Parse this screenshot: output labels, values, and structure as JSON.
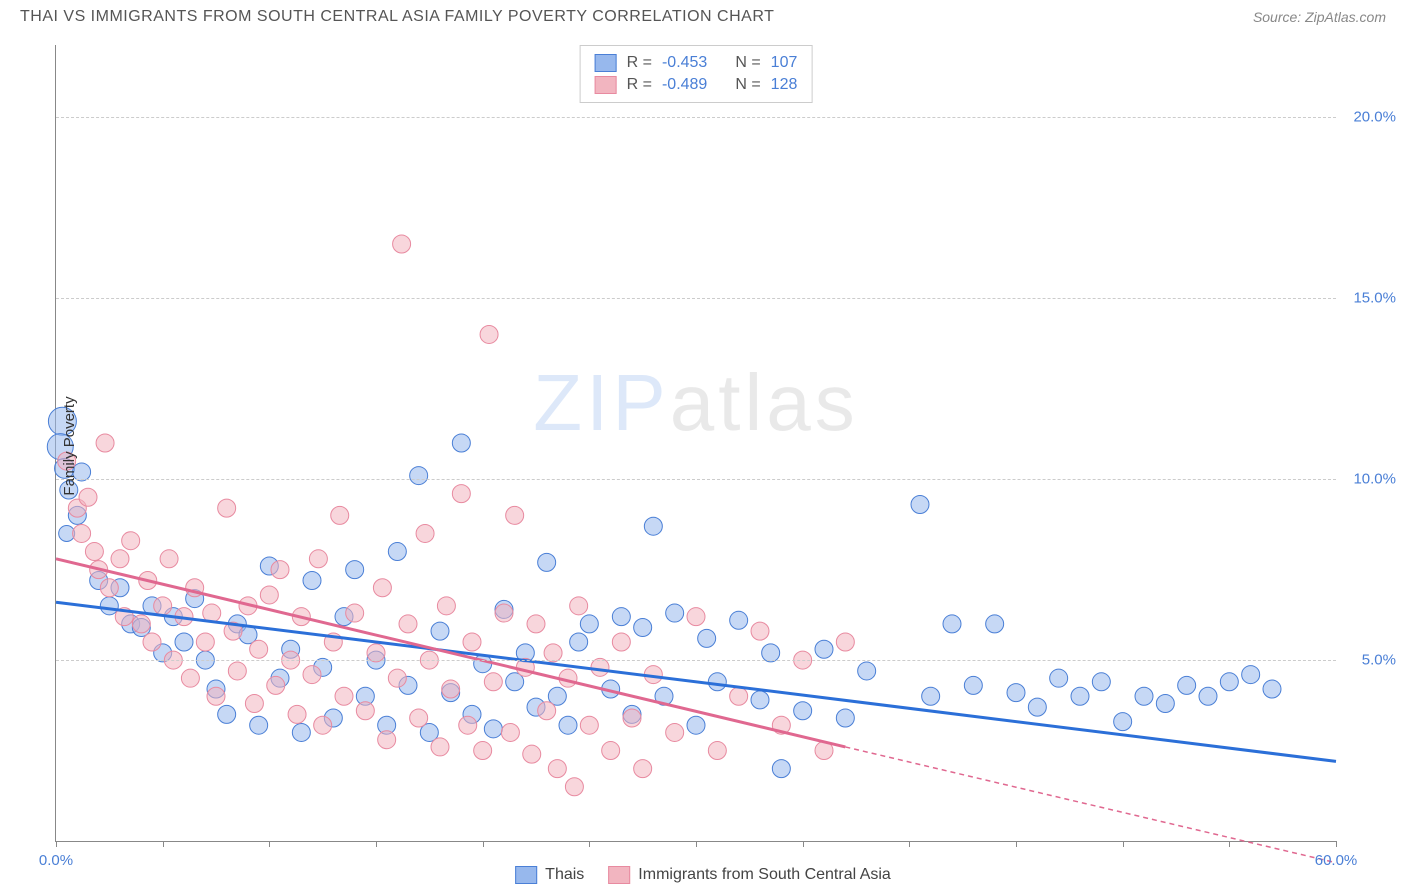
{
  "header": {
    "title": "THAI VS IMMIGRANTS FROM SOUTH CENTRAL ASIA FAMILY POVERTY CORRELATION CHART",
    "source": "Source: ZipAtlas.com"
  },
  "chart": {
    "type": "scatter",
    "ylabel": "Family Poverty",
    "background_color": "#ffffff",
    "grid_color": "#cccccc",
    "axis_color": "#888888",
    "tick_label_color": "#4a7fd6",
    "label_fontsize": 15,
    "xlim": [
      0,
      60
    ],
    "ylim": [
      0,
      22
    ],
    "xticks": [
      0,
      5,
      10,
      15,
      20,
      25,
      30,
      35,
      40,
      45,
      50,
      55,
      60
    ],
    "xtick_labels": {
      "0": "0.0%",
      "60": "60.0%"
    },
    "yticks": [
      5,
      10,
      15,
      20
    ],
    "ytick_labels": {
      "5": "5.0%",
      "10": "10.0%",
      "15": "15.0%",
      "20": "20.0%"
    },
    "watermark": {
      "text_z": "ZIP",
      "text_rest": "atlas",
      "fontsize": 80,
      "color_z": "#7aa5e8",
      "color_rest": "#aaaaaa",
      "opacity": 0.25
    },
    "series": [
      {
        "name": "Thais",
        "fill_color": "#97b8ed",
        "stroke_color": "#4a7fd6",
        "fill_opacity": 0.55,
        "marker_radius": 9,
        "trend": {
          "x1": 0,
          "y1": 6.6,
          "x2": 60,
          "y2": 2.2,
          "color": "#2b6fd8",
          "width": 3,
          "dash_from_x": 60
        },
        "stats": {
          "R": "-0.453",
          "N": "107"
        },
        "points": [
          {
            "x": 0.3,
            "y": 11.6,
            "r": 14
          },
          {
            "x": 0.2,
            "y": 10.9,
            "r": 13
          },
          {
            "x": 0.4,
            "y": 10.3,
            "r": 10
          },
          {
            "x": 0.6,
            "y": 9.7,
            "r": 9
          },
          {
            "x": 1.0,
            "y": 9.0,
            "r": 9
          },
          {
            "x": 0.5,
            "y": 8.5,
            "r": 8
          },
          {
            "x": 1.2,
            "y": 10.2,
            "r": 9
          },
          {
            "x": 2.0,
            "y": 7.2,
            "r": 9
          },
          {
            "x": 2.5,
            "y": 6.5,
            "r": 9
          },
          {
            "x": 3.0,
            "y": 7.0,
            "r": 9
          },
          {
            "x": 3.5,
            "y": 6.0,
            "r": 9
          },
          {
            "x": 4.0,
            "y": 5.9,
            "r": 9
          },
          {
            "x": 4.5,
            "y": 6.5,
            "r": 9
          },
          {
            "x": 5.0,
            "y": 5.2,
            "r": 9
          },
          {
            "x": 5.5,
            "y": 6.2,
            "r": 9
          },
          {
            "x": 6.0,
            "y": 5.5,
            "r": 9
          },
          {
            "x": 6.5,
            "y": 6.7,
            "r": 9
          },
          {
            "x": 7.0,
            "y": 5.0,
            "r": 9
          },
          {
            "x": 7.5,
            "y": 4.2,
            "r": 9
          },
          {
            "x": 8.0,
            "y": 3.5,
            "r": 9
          },
          {
            "x": 8.5,
            "y": 6.0,
            "r": 9
          },
          {
            "x": 9.0,
            "y": 5.7,
            "r": 9
          },
          {
            "x": 9.5,
            "y": 3.2,
            "r": 9
          },
          {
            "x": 10.0,
            "y": 7.6,
            "r": 9
          },
          {
            "x": 10.5,
            "y": 4.5,
            "r": 9
          },
          {
            "x": 11.0,
            "y": 5.3,
            "r": 9
          },
          {
            "x": 11.5,
            "y": 3.0,
            "r": 9
          },
          {
            "x": 12.0,
            "y": 7.2,
            "r": 9
          },
          {
            "x": 12.5,
            "y": 4.8,
            "r": 9
          },
          {
            "x": 13.0,
            "y": 3.4,
            "r": 9
          },
          {
            "x": 13.5,
            "y": 6.2,
            "r": 9
          },
          {
            "x": 14.0,
            "y": 7.5,
            "r": 9
          },
          {
            "x": 14.5,
            "y": 4.0,
            "r": 9
          },
          {
            "x": 15.0,
            "y": 5.0,
            "r": 9
          },
          {
            "x": 15.5,
            "y": 3.2,
            "r": 9
          },
          {
            "x": 16.0,
            "y": 8.0,
            "r": 9
          },
          {
            "x": 16.5,
            "y": 4.3,
            "r": 9
          },
          {
            "x": 17.0,
            "y": 10.1,
            "r": 9
          },
          {
            "x": 17.5,
            "y": 3.0,
            "r": 9
          },
          {
            "x": 18.0,
            "y": 5.8,
            "r": 9
          },
          {
            "x": 18.5,
            "y": 4.1,
            "r": 9
          },
          {
            "x": 19.0,
            "y": 11.0,
            "r": 9
          },
          {
            "x": 19.5,
            "y": 3.5,
            "r": 9
          },
          {
            "x": 20.0,
            "y": 4.9,
            "r": 9
          },
          {
            "x": 20.5,
            "y": 3.1,
            "r": 9
          },
          {
            "x": 21.0,
            "y": 6.4,
            "r": 9
          },
          {
            "x": 21.5,
            "y": 4.4,
            "r": 9
          },
          {
            "x": 22.0,
            "y": 5.2,
            "r": 9
          },
          {
            "x": 22.5,
            "y": 3.7,
            "r": 9
          },
          {
            "x": 23.0,
            "y": 7.7,
            "r": 9
          },
          {
            "x": 23.5,
            "y": 4.0,
            "r": 9
          },
          {
            "x": 24.0,
            "y": 3.2,
            "r": 9
          },
          {
            "x": 24.5,
            "y": 5.5,
            "r": 9
          },
          {
            "x": 25.0,
            "y": 6.0,
            "r": 9
          },
          {
            "x": 26.0,
            "y": 4.2,
            "r": 9
          },
          {
            "x": 26.5,
            "y": 6.2,
            "r": 9
          },
          {
            "x": 27.0,
            "y": 3.5,
            "r": 9
          },
          {
            "x": 27.5,
            "y": 5.9,
            "r": 9
          },
          {
            "x": 28.0,
            "y": 8.7,
            "r": 9
          },
          {
            "x": 28.5,
            "y": 4.0,
            "r": 9
          },
          {
            "x": 29.0,
            "y": 6.3,
            "r": 9
          },
          {
            "x": 30.0,
            "y": 3.2,
            "r": 9
          },
          {
            "x": 30.5,
            "y": 5.6,
            "r": 9
          },
          {
            "x": 31.0,
            "y": 4.4,
            "r": 9
          },
          {
            "x": 32.0,
            "y": 6.1,
            "r": 9
          },
          {
            "x": 33.0,
            "y": 3.9,
            "r": 9
          },
          {
            "x": 33.5,
            "y": 5.2,
            "r": 9
          },
          {
            "x": 34.0,
            "y": 2.0,
            "r": 9
          },
          {
            "x": 35.0,
            "y": 3.6,
            "r": 9
          },
          {
            "x": 36.0,
            "y": 5.3,
            "r": 9
          },
          {
            "x": 37.0,
            "y": 3.4,
            "r": 9
          },
          {
            "x": 38.0,
            "y": 4.7,
            "r": 9
          },
          {
            "x": 40.5,
            "y": 9.3,
            "r": 9
          },
          {
            "x": 41.0,
            "y": 4.0,
            "r": 9
          },
          {
            "x": 42.0,
            "y": 6.0,
            "r": 9
          },
          {
            "x": 43.0,
            "y": 4.3,
            "r": 9
          },
          {
            "x": 44.0,
            "y": 6.0,
            "r": 9
          },
          {
            "x": 45.0,
            "y": 4.1,
            "r": 9
          },
          {
            "x": 46.0,
            "y": 3.7,
            "r": 9
          },
          {
            "x": 47.0,
            "y": 4.5,
            "r": 9
          },
          {
            "x": 48.0,
            "y": 4.0,
            "r": 9
          },
          {
            "x": 49.0,
            "y": 4.4,
            "r": 9
          },
          {
            "x": 50.0,
            "y": 3.3,
            "r": 9
          },
          {
            "x": 51.0,
            "y": 4.0,
            "r": 9
          },
          {
            "x": 52.0,
            "y": 3.8,
            "r": 9
          },
          {
            "x": 53.0,
            "y": 4.3,
            "r": 9
          },
          {
            "x": 54.0,
            "y": 4.0,
            "r": 9
          },
          {
            "x": 55.0,
            "y": 4.4,
            "r": 9
          },
          {
            "x": 56.0,
            "y": 4.6,
            "r": 9
          },
          {
            "x": 57.0,
            "y": 4.2,
            "r": 9
          }
        ]
      },
      {
        "name": "Immigrants from South Central Asia",
        "fill_color": "#f2b5c0",
        "stroke_color": "#e88aa0",
        "fill_opacity": 0.55,
        "marker_radius": 9,
        "trend": {
          "x1": 0,
          "y1": 7.8,
          "x2": 37,
          "y2": 2.6,
          "color": "#e06890",
          "width": 3,
          "dash_from_x": 37,
          "dash_to_x": 60,
          "dash_to_y": -0.6
        },
        "stats": {
          "R": "-0.489",
          "N": "128"
        },
        "points": [
          {
            "x": 0.5,
            "y": 10.5,
            "r": 9
          },
          {
            "x": 1.0,
            "y": 9.2,
            "r": 9
          },
          {
            "x": 1.2,
            "y": 8.5,
            "r": 9
          },
          {
            "x": 1.5,
            "y": 9.5,
            "r": 9
          },
          {
            "x": 1.8,
            "y": 8.0,
            "r": 9
          },
          {
            "x": 2.0,
            "y": 7.5,
            "r": 9
          },
          {
            "x": 2.3,
            "y": 11.0,
            "r": 9
          },
          {
            "x": 2.5,
            "y": 7.0,
            "r": 9
          },
          {
            "x": 3.0,
            "y": 7.8,
            "r": 9
          },
          {
            "x": 3.2,
            "y": 6.2,
            "r": 9
          },
          {
            "x": 3.5,
            "y": 8.3,
            "r": 9
          },
          {
            "x": 4.0,
            "y": 6.0,
            "r": 9
          },
          {
            "x": 4.3,
            "y": 7.2,
            "r": 9
          },
          {
            "x": 4.5,
            "y": 5.5,
            "r": 9
          },
          {
            "x": 5.0,
            "y": 6.5,
            "r": 9
          },
          {
            "x": 5.3,
            "y": 7.8,
            "r": 9
          },
          {
            "x": 5.5,
            "y": 5.0,
            "r": 9
          },
          {
            "x": 6.0,
            "y": 6.2,
            "r": 9
          },
          {
            "x": 6.3,
            "y": 4.5,
            "r": 9
          },
          {
            "x": 6.5,
            "y": 7.0,
            "r": 9
          },
          {
            "x": 7.0,
            "y": 5.5,
            "r": 9
          },
          {
            "x": 7.3,
            "y": 6.3,
            "r": 9
          },
          {
            "x": 7.5,
            "y": 4.0,
            "r": 9
          },
          {
            "x": 8.0,
            "y": 9.2,
            "r": 9
          },
          {
            "x": 8.3,
            "y": 5.8,
            "r": 9
          },
          {
            "x": 8.5,
            "y": 4.7,
            "r": 9
          },
          {
            "x": 9.0,
            "y": 6.5,
            "r": 9
          },
          {
            "x": 9.3,
            "y": 3.8,
            "r": 9
          },
          {
            "x": 9.5,
            "y": 5.3,
            "r": 9
          },
          {
            "x": 10.0,
            "y": 6.8,
            "r": 9
          },
          {
            "x": 10.3,
            "y": 4.3,
            "r": 9
          },
          {
            "x": 10.5,
            "y": 7.5,
            "r": 9
          },
          {
            "x": 11.0,
            "y": 5.0,
            "r": 9
          },
          {
            "x": 11.3,
            "y": 3.5,
            "r": 9
          },
          {
            "x": 11.5,
            "y": 6.2,
            "r": 9
          },
          {
            "x": 12.0,
            "y": 4.6,
            "r": 9
          },
          {
            "x": 12.3,
            "y": 7.8,
            "r": 9
          },
          {
            "x": 12.5,
            "y": 3.2,
            "r": 9
          },
          {
            "x": 13.0,
            "y": 5.5,
            "r": 9
          },
          {
            "x": 13.3,
            "y": 9.0,
            "r": 9
          },
          {
            "x": 13.5,
            "y": 4.0,
            "r": 9
          },
          {
            "x": 14.0,
            "y": 6.3,
            "r": 9
          },
          {
            "x": 14.5,
            "y": 3.6,
            "r": 9
          },
          {
            "x": 15.0,
            "y": 5.2,
            "r": 9
          },
          {
            "x": 15.3,
            "y": 7.0,
            "r": 9
          },
          {
            "x": 15.5,
            "y": 2.8,
            "r": 9
          },
          {
            "x": 16.0,
            "y": 4.5,
            "r": 9
          },
          {
            "x": 16.2,
            "y": 16.5,
            "r": 9
          },
          {
            "x": 16.5,
            "y": 6.0,
            "r": 9
          },
          {
            "x": 17.0,
            "y": 3.4,
            "r": 9
          },
          {
            "x": 17.3,
            "y": 8.5,
            "r": 9
          },
          {
            "x": 17.5,
            "y": 5.0,
            "r": 9
          },
          {
            "x": 18.0,
            "y": 2.6,
            "r": 9
          },
          {
            "x": 18.3,
            "y": 6.5,
            "r": 9
          },
          {
            "x": 18.5,
            "y": 4.2,
            "r": 9
          },
          {
            "x": 19.0,
            "y": 9.6,
            "r": 9
          },
          {
            "x": 19.3,
            "y": 3.2,
            "r": 9
          },
          {
            "x": 19.5,
            "y": 5.5,
            "r": 9
          },
          {
            "x": 20.0,
            "y": 2.5,
            "r": 9
          },
          {
            "x": 20.3,
            "y": 14.0,
            "r": 9
          },
          {
            "x": 20.5,
            "y": 4.4,
            "r": 9
          },
          {
            "x": 21.0,
            "y": 6.3,
            "r": 9
          },
          {
            "x": 21.3,
            "y": 3.0,
            "r": 9
          },
          {
            "x": 21.5,
            "y": 9.0,
            "r": 9
          },
          {
            "x": 22.0,
            "y": 4.8,
            "r": 9
          },
          {
            "x": 22.3,
            "y": 2.4,
            "r": 9
          },
          {
            "x": 22.5,
            "y": 6.0,
            "r": 9
          },
          {
            "x": 23.0,
            "y": 3.6,
            "r": 9
          },
          {
            "x": 23.3,
            "y": 5.2,
            "r": 9
          },
          {
            "x": 23.5,
            "y": 2.0,
            "r": 9
          },
          {
            "x": 24.0,
            "y": 4.5,
            "r": 9
          },
          {
            "x": 24.3,
            "y": 1.5,
            "r": 9
          },
          {
            "x": 24.5,
            "y": 6.5,
            "r": 9
          },
          {
            "x": 25.0,
            "y": 3.2,
            "r": 9
          },
          {
            "x": 25.5,
            "y": 4.8,
            "r": 9
          },
          {
            "x": 26.0,
            "y": 2.5,
            "r": 9
          },
          {
            "x": 26.5,
            "y": 5.5,
            "r": 9
          },
          {
            "x": 27.0,
            "y": 3.4,
            "r": 9
          },
          {
            "x": 27.5,
            "y": 2.0,
            "r": 9
          },
          {
            "x": 28.0,
            "y": 4.6,
            "r": 9
          },
          {
            "x": 29.0,
            "y": 3.0,
            "r": 9
          },
          {
            "x": 30.0,
            "y": 6.2,
            "r": 9
          },
          {
            "x": 31.0,
            "y": 2.5,
            "r": 9
          },
          {
            "x": 32.0,
            "y": 4.0,
            "r": 9
          },
          {
            "x": 33.0,
            "y": 5.8,
            "r": 9
          },
          {
            "x": 34.0,
            "y": 3.2,
            "r": 9
          },
          {
            "x": 35.0,
            "y": 5.0,
            "r": 9
          },
          {
            "x": 36.0,
            "y": 2.5,
            "r": 9
          },
          {
            "x": 37.0,
            "y": 5.5,
            "r": 9
          }
        ]
      }
    ],
    "stats_box": {
      "rows": [
        {
          "swatch_fill": "#97b8ed",
          "swatch_stroke": "#4a7fd6",
          "r_label": "R =",
          "r_value": "-0.453",
          "n_label": "N =",
          "n_value": "107"
        },
        {
          "swatch_fill": "#f2b5c0",
          "swatch_stroke": "#e88aa0",
          "r_label": "R =",
          "r_value": "-0.489",
          "n_label": "N =",
          "n_value": "128"
        }
      ]
    },
    "bottom_legend": [
      {
        "swatch_fill": "#97b8ed",
        "swatch_stroke": "#4a7fd6",
        "label": "Thais"
      },
      {
        "swatch_fill": "#f2b5c0",
        "swatch_stroke": "#e88aa0",
        "label": "Immigrants from South Central Asia"
      }
    ]
  }
}
